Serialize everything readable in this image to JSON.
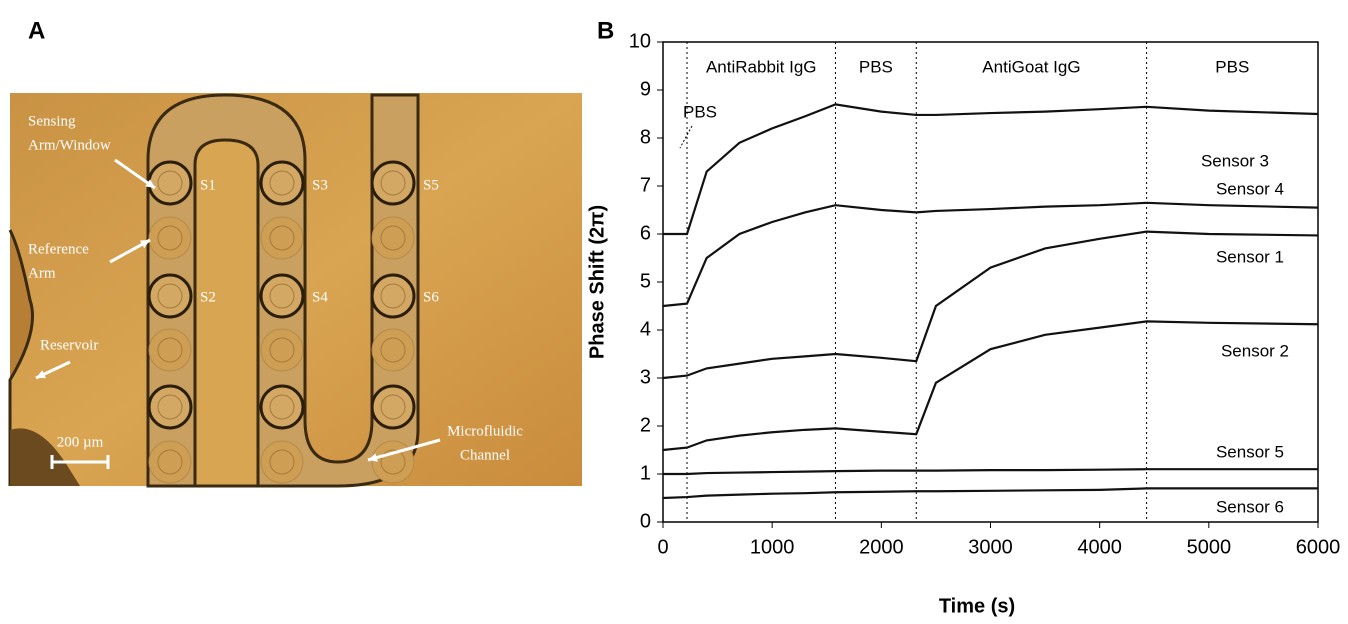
{
  "panel_a": {
    "label": "A",
    "annotations": [
      {
        "lines": [
          "Sensing",
          "Arm/Window"
        ]
      },
      {
        "lines": [
          "Reference",
          "Arm"
        ]
      },
      {
        "lines": [
          "Reservoir"
        ]
      },
      {
        "lines": [
          "Microfluidic",
          "Channel"
        ]
      }
    ],
    "sensors": [
      "S1",
      "S2",
      "S3",
      "S4",
      "S5",
      "S6"
    ],
    "scale_bar": "200 µm"
  },
  "chart_data": {
    "type": "line",
    "panel_label": "B",
    "x_label": "Time (s)",
    "y_label": "Phase Shift (2π)",
    "xlim": [
      0,
      6000
    ],
    "ylim": [
      0,
      10
    ],
    "xticks": [
      0,
      1000,
      2000,
      3000,
      4000,
      5000,
      6000
    ],
    "yticks": [
      0,
      1,
      2,
      3,
      4,
      5,
      6,
      7,
      8,
      9,
      10
    ],
    "phase_boundaries": [
      220,
      1580,
      2320,
      4430
    ],
    "phases": [
      "AntiRabbit IgG",
      "PBS",
      "AntiGoat IgG",
      "PBS"
    ],
    "start_phase": "PBS",
    "x": [
      0,
      220,
      400,
      700,
      1000,
      1300,
      1580,
      2000,
      2320,
      2500,
      3000,
      3500,
      4000,
      4430,
      5000,
      6000
    ],
    "series": [
      {
        "name": "Sensor 3",
        "color": "#111111",
        "values": [
          6.0,
          6.0,
          7.3,
          7.9,
          8.2,
          8.45,
          8.7,
          8.55,
          8.48,
          8.48,
          8.52,
          8.55,
          8.6,
          8.65,
          8.57,
          8.5
        ]
      },
      {
        "name": "Sensor 4",
        "color": "#111111",
        "values": [
          4.5,
          4.55,
          5.5,
          6.0,
          6.25,
          6.45,
          6.6,
          6.5,
          6.45,
          6.48,
          6.52,
          6.57,
          6.6,
          6.65,
          6.6,
          6.55
        ]
      },
      {
        "name": "Sensor 1",
        "color": "#111111",
        "values": [
          3.0,
          3.05,
          3.2,
          3.3,
          3.4,
          3.45,
          3.5,
          3.42,
          3.35,
          4.5,
          5.3,
          5.7,
          5.9,
          6.05,
          6.0,
          5.97
        ]
      },
      {
        "name": "Sensor 2",
        "color": "#111111",
        "values": [
          1.5,
          1.55,
          1.7,
          1.8,
          1.87,
          1.92,
          1.95,
          1.88,
          1.83,
          2.9,
          3.6,
          3.9,
          4.05,
          4.18,
          4.15,
          4.12
        ]
      },
      {
        "name": "Sensor 5",
        "color": "#111111",
        "values": [
          1.0,
          1.0,
          1.02,
          1.03,
          1.04,
          1.05,
          1.06,
          1.07,
          1.07,
          1.07,
          1.08,
          1.08,
          1.09,
          1.1,
          1.1,
          1.1
        ]
      },
      {
        "name": "Sensor 6",
        "color": "#111111",
        "values": [
          0.5,
          0.52,
          0.55,
          0.57,
          0.59,
          0.6,
          0.62,
          0.63,
          0.64,
          0.64,
          0.65,
          0.66,
          0.67,
          0.7,
          0.7,
          0.7
        ]
      }
    ]
  }
}
